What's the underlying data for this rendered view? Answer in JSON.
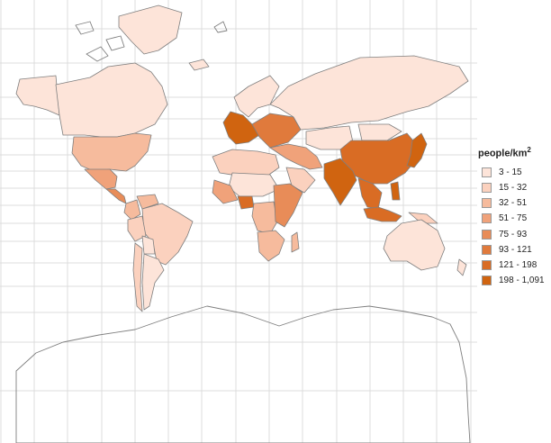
{
  "legend": {
    "title": "people/km",
    "title_superscript": "2",
    "position": "right",
    "classes": [
      {
        "label": "3 - 15",
        "color": "#fde4d9"
      },
      {
        "label": "15 - 32",
        "color": "#fbd1be"
      },
      {
        "label": "32 - 51",
        "color": "#f6bb9d"
      },
      {
        "label": "51 - 75",
        "color": "#f0a27a"
      },
      {
        "label": "75 - 93",
        "color": "#e88c58"
      },
      {
        "label": "93 - 121",
        "color": "#e07a3c"
      },
      {
        "label": "121 - 198",
        "color": "#d96c24"
      },
      {
        "label": "198 - 1,091",
        "color": "#d06410"
      }
    ]
  },
  "map": {
    "projection": "mercator",
    "background": "#ffffff",
    "gridline_color": "#dcdcdc",
    "border_color": "#7f7f7f",
    "regions": [
      {
        "name": "Alaska",
        "class": "3 - 15"
      },
      {
        "name": "Canada",
        "class": "3 - 15"
      },
      {
        "name": "Greenland",
        "class": "3 - 15"
      },
      {
        "name": "United States",
        "class": "32 - 51"
      },
      {
        "name": "Mexico",
        "class": "51 - 75"
      },
      {
        "name": "Central America",
        "class": "75 - 93"
      },
      {
        "name": "Colombia",
        "class": "32 - 51"
      },
      {
        "name": "Venezuela",
        "class": "32 - 51"
      },
      {
        "name": "Brazil",
        "class": "15 - 32"
      },
      {
        "name": "Peru",
        "class": "15 - 32"
      },
      {
        "name": "Bolivia",
        "class": "3 - 15"
      },
      {
        "name": "Argentina",
        "class": "3 - 15"
      },
      {
        "name": "Chile",
        "class": "15 - 32"
      },
      {
        "name": "Iceland",
        "class": "3 - 15"
      },
      {
        "name": "Western Europe",
        "class": "198 - 1,091"
      },
      {
        "name": "Scandinavia",
        "class": "3 - 15"
      },
      {
        "name": "Eastern Europe",
        "class": "93 - 121"
      },
      {
        "name": "Russia",
        "class": "3 - 15"
      },
      {
        "name": "Kazakhstan",
        "class": "3 - 15"
      },
      {
        "name": "Mongolia",
        "class": "3 - 15"
      },
      {
        "name": "China",
        "class": "121 - 198"
      },
      {
        "name": "India",
        "class": "198 - 1,091"
      },
      {
        "name": "Southeast Asia",
        "class": "121 - 198"
      },
      {
        "name": "Japan",
        "class": "198 - 1,091"
      },
      {
        "name": "Middle East",
        "class": "51 - 75"
      },
      {
        "name": "Saudi Arabia",
        "class": "15 - 32"
      },
      {
        "name": "North Africa",
        "class": "15 - 32"
      },
      {
        "name": "Sahara",
        "class": "3 - 15"
      },
      {
        "name": "West Africa",
        "class": "51 - 75"
      },
      {
        "name": "Nigeria",
        "class": "121 - 198"
      },
      {
        "name": "Central Africa",
        "class": "32 - 51"
      },
      {
        "name": "East Africa",
        "class": "75 - 93"
      },
      {
        "name": "Southern Africa",
        "class": "32 - 51"
      },
      {
        "name": "Madagascar",
        "class": "32 - 51"
      },
      {
        "name": "Indonesia",
        "class": "121 - 198"
      },
      {
        "name": "Philippines",
        "class": "198 - 1,091"
      },
      {
        "name": "Papua New Guinea",
        "class": "15 - 32"
      },
      {
        "name": "Australia",
        "class": "3 - 15"
      },
      {
        "name": "New Zealand",
        "class": "3 - 15"
      }
    ]
  }
}
